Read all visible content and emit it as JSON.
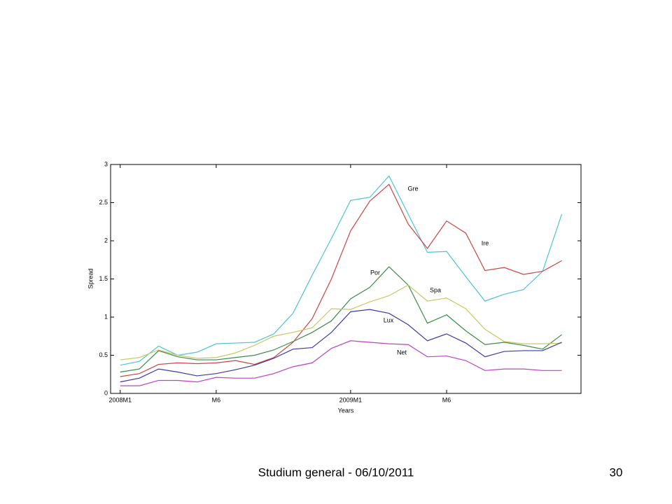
{
  "chart_data": {
    "type": "line",
    "xlabel": "Years",
    "ylabel": "Spread",
    "x": [
      1,
      2,
      3,
      4,
      5,
      6,
      7,
      8,
      9,
      10,
      11,
      12,
      13,
      14,
      15,
      16,
      17,
      18,
      19,
      20,
      21,
      22,
      23,
      24
    ],
    "xlim": [
      0.5,
      25
    ],
    "xticks": [
      {
        "value": 1,
        "label": "2008M1"
      },
      {
        "value": 6,
        "label": "M6"
      },
      {
        "value": 13,
        "label": "2009M1"
      },
      {
        "value": 18,
        "label": "M6"
      }
    ],
    "ylim": [
      0,
      3
    ],
    "yticks": [
      0,
      0.5,
      1,
      1.5,
      2,
      2.5,
      3
    ],
    "grid": false,
    "series": [
      {
        "name": "Gre",
        "color": "#4cc3d9",
        "values": [
          0.37,
          0.42,
          0.62,
          0.5,
          0.54,
          0.65,
          0.66,
          0.67,
          0.78,
          1.05,
          1.55,
          2.03,
          2.53,
          2.57,
          2.85,
          2.35,
          1.85,
          1.86,
          1.53,
          1.21,
          1.3,
          1.36,
          1.6,
          2.35
        ]
      },
      {
        "name": "Ire",
        "color": "#cc4444",
        "values": [
          0.22,
          0.26,
          0.38,
          0.4,
          0.39,
          0.4,
          0.43,
          0.38,
          0.47,
          0.67,
          0.98,
          1.5,
          2.13,
          2.52,
          2.74,
          2.22,
          1.9,
          2.26,
          2.1,
          1.61,
          1.65,
          1.56,
          1.6,
          1.74
        ]
      },
      {
        "name": "Por",
        "color": "#3a8a48",
        "values": [
          0.28,
          0.32,
          0.56,
          0.48,
          0.44,
          0.44,
          0.47,
          0.5,
          0.57,
          0.68,
          0.8,
          0.95,
          1.24,
          1.39,
          1.66,
          1.42,
          0.92,
          1.03,
          0.82,
          0.64,
          0.67,
          0.63,
          0.58,
          0.77
        ]
      },
      {
        "name": "Spa",
        "color": "#c8c860",
        "values": [
          0.44,
          0.47,
          0.57,
          0.5,
          0.46,
          0.47,
          0.53,
          0.63,
          0.75,
          0.8,
          0.86,
          1.11,
          1.1,
          1.2,
          1.28,
          1.42,
          1.21,
          1.25,
          1.11,
          0.84,
          0.68,
          0.65,
          0.65,
          0.66
        ]
      },
      {
        "name": "Lux",
        "color": "#3a3aa8",
        "values": [
          0.15,
          0.2,
          0.32,
          0.28,
          0.23,
          0.26,
          0.31,
          0.37,
          0.46,
          0.58,
          0.6,
          0.8,
          1.07,
          1.1,
          1.05,
          0.9,
          0.69,
          0.78,
          0.66,
          0.48,
          0.55,
          0.56,
          0.56,
          0.67
        ]
      },
      {
        "name": "Net",
        "color": "#c040c0",
        "values": [
          0.1,
          0.1,
          0.17,
          0.17,
          0.15,
          0.21,
          0.2,
          0.2,
          0.26,
          0.35,
          0.4,
          0.59,
          0.69,
          0.67,
          0.65,
          0.64,
          0.48,
          0.49,
          0.43,
          0.3,
          0.32,
          0.32,
          0.3,
          0.3
        ]
      }
    ]
  },
  "footer": {
    "text": "Studium general - 06/10/2011",
    "page": "30"
  }
}
